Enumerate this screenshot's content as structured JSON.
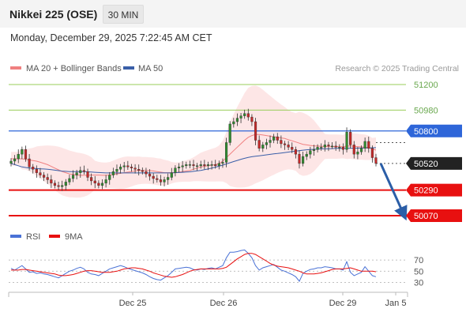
{
  "header": {
    "instrument": "Nikkei 225 (OSE)",
    "timeframe": "30 MIN",
    "timestamp": "Monday, December 29, 2025 7:22:45 AM CET"
  },
  "legend": {
    "ma20_label": "MA 20 + Bollinger Bands",
    "ma50_label": "MA 50",
    "credit": "Research © 2025 Trading Central"
  },
  "rsi_legend": {
    "rsi_label": "RSI",
    "ma9_label": "9MA"
  },
  "colors": {
    "ma20": "#f08080",
    "ma50": "#3a5fa8",
    "bollinger": "#fde2e2",
    "target": "#9acd5a",
    "pivot": "#2e66d9",
    "support": "#e81010",
    "arrow": "#2b5ea7",
    "up_candle": "#2f8c2f",
    "down_candle": "#c62828",
    "rsi": "#4a72d6"
  },
  "chart_data": {
    "type": "candlestick",
    "levels": [
      {
        "value": 51200,
        "label": "51200",
        "kind": "target"
      },
      {
        "value": 50980,
        "label": "50980",
        "kind": "target"
      },
      {
        "value": 50800,
        "label": "50800",
        "kind": "pivot"
      },
      {
        "value": 50520,
        "label": "50520",
        "kind": "last-price"
      },
      {
        "value": 50290,
        "label": "50290",
        "kind": "support"
      },
      {
        "value": 50070,
        "label": "50070",
        "kind": "support"
      }
    ],
    "y_range": [
      50070,
      51200
    ],
    "x_ticks": [
      "Dec 25",
      "Dec 26",
      "Dec 29",
      "Jan 5"
    ],
    "close": [
      50540,
      50560,
      50600,
      50640,
      50560,
      50490,
      50470,
      50440,
      50420,
      50400,
      50380,
      50350,
      50330,
      50320,
      50330,
      50360,
      50390,
      50420,
      50440,
      50460,
      50450,
      50400,
      50370,
      50350,
      50330,
      50350,
      50380,
      50420,
      50450,
      50470,
      50490,
      50500,
      50490,
      50480,
      50470,
      50460,
      50450,
      50430,
      50410,
      50390,
      50380,
      50360,
      50380,
      50400,
      50440,
      50480,
      50490,
      50500,
      50510,
      50510,
      50500,
      50500,
      50510,
      50500,
      50510,
      50510,
      50500,
      50520,
      50530,
      50700,
      50860,
      50880,
      50910,
      50930,
      50950,
      50920,
      50880,
      50720,
      50650,
      50680,
      50700,
      50720,
      50750,
      50720,
      50690,
      50680,
      50660,
      50640,
      50600,
      50520,
      50580,
      50600,
      50630,
      50640,
      50660,
      50660,
      50680,
      50670,
      50670,
      50660,
      50660,
      50640,
      50790,
      50680,
      50600,
      50620,
      50650,
      50710,
      50650,
      50570,
      50520
    ],
    "ma20": [
      50560,
      50560,
      50560,
      50560,
      50555,
      50550,
      50545,
      50540,
      50530,
      50520,
      50510,
      50495,
      50480,
      50465,
      50450,
      50440,
      50430,
      50425,
      50420,
      50418,
      50418,
      50418,
      50420,
      50420,
      50420,
      50418,
      50418,
      50420,
      50425,
      50430,
      50435,
      50440,
      50445,
      50450,
      50455,
      50460,
      50460,
      50460,
      50458,
      50455,
      50450,
      50445,
      50440,
      50440,
      50440,
      50442,
      50445,
      50450,
      50455,
      50460,
      50470,
      50480,
      50490,
      50495,
      50500,
      50505,
      50510,
      50520,
      50540,
      50570,
      50600,
      50630,
      50660,
      50690,
      50720,
      50745,
      50760,
      50770,
      50770,
      50765,
      50760,
      50755,
      50750,
      50745,
      50740,
      50735,
      50725,
      50715,
      50705,
      50695,
      50685,
      50680,
      50675,
      50672,
      50670,
      50668,
      50666,
      50665,
      50665,
      50665,
      50665,
      50664,
      50670,
      50670,
      50668,
      50665,
      50662,
      50660,
      50655,
      50645,
      50635
    ],
    "ma50": [
      50520,
      50510,
      50500,
      50490,
      50485,
      50480,
      50478,
      50476,
      50474,
      50472,
      50470,
      50466,
      50462,
      50458,
      50454,
      50452,
      50450,
      50450,
      50450,
      50450,
      50450,
      50448,
      50446,
      50444,
      50442,
      50440,
      50438,
      50438,
      50438,
      50438,
      50438,
      50438,
      50438,
      50438,
      50438,
      50438,
      50438,
      50438,
      50438,
      50438,
      50438,
      50438,
      50438,
      50438,
      50438,
      50440,
      50442,
      50444,
      50446,
      50448,
      50452,
      50456,
      50460,
      50466,
      50472,
      50480,
      50488,
      50496,
      50506,
      50516,
      50526,
      50536,
      50546,
      50556,
      50564,
      50572,
      50578,
      50582,
      50586,
      50590,
      50594,
      50598,
      50602,
      50606,
      50610,
      50614,
      50618,
      50622,
      50626,
      50630,
      50634,
      50638,
      50640,
      50642,
      50644,
      50646,
      50646,
      50646,
      50648,
      50650,
      50650,
      50650,
      50650,
      50651,
      50652,
      50652,
      50653,
      50654,
      50654,
      50655,
      50656
    ],
    "rsi": [
      55,
      52,
      56,
      60,
      54,
      48,
      49,
      46,
      47,
      45,
      44,
      42,
      40,
      38,
      42,
      46,
      50,
      52,
      55,
      57,
      54,
      48,
      45,
      44,
      42,
      46,
      50,
      54,
      56,
      58,
      60,
      58,
      55,
      53,
      51,
      49,
      47,
      44,
      40,
      37,
      35,
      34,
      38,
      42,
      48,
      54,
      55,
      56,
      57,
      56,
      53,
      52,
      54,
      53,
      55,
      56,
      54,
      57,
      60,
      74,
      84,
      84,
      85,
      87,
      88,
      82,
      74,
      60,
      52,
      56,
      58,
      60,
      62,
      57,
      52,
      50,
      47,
      44,
      40,
      32,
      46,
      50,
      53,
      54,
      56,
      56,
      58,
      57,
      56,
      54,
      54,
      52,
      67,
      48,
      42,
      45,
      48,
      58,
      50,
      42,
      40
    ],
    "rsi_ma9": [
      52,
      52,
      52,
      53,
      53,
      52,
      51,
      50,
      49,
      48,
      47,
      46,
      45,
      43,
      42,
      42,
      43,
      44,
      46,
      48,
      50,
      51,
      51,
      50,
      49,
      48,
      48,
      48,
      49,
      50,
      52,
      54,
      55,
      56,
      56,
      55,
      54,
      52,
      50,
      47,
      45,
      43,
      41,
      40,
      39,
      40,
      42,
      44,
      47,
      50,
      52,
      53,
      54,
      54,
      54,
      54,
      54,
      54,
      55,
      57,
      62,
      67,
      72,
      76,
      80,
      82,
      82,
      80,
      76,
      72,
      68,
      64,
      61,
      59,
      58,
      57,
      56,
      54,
      52,
      50,
      47,
      45,
      45,
      45,
      46,
      47,
      49,
      51,
      53,
      54,
      54,
      54,
      55,
      56,
      54,
      52,
      50,
      50,
      50,
      50,
      49
    ],
    "rsi_levels": [
      70,
      50,
      30
    ],
    "rsi_range": [
      15,
      90
    ],
    "projection": {
      "from": 50520,
      "to": 50070
    }
  }
}
